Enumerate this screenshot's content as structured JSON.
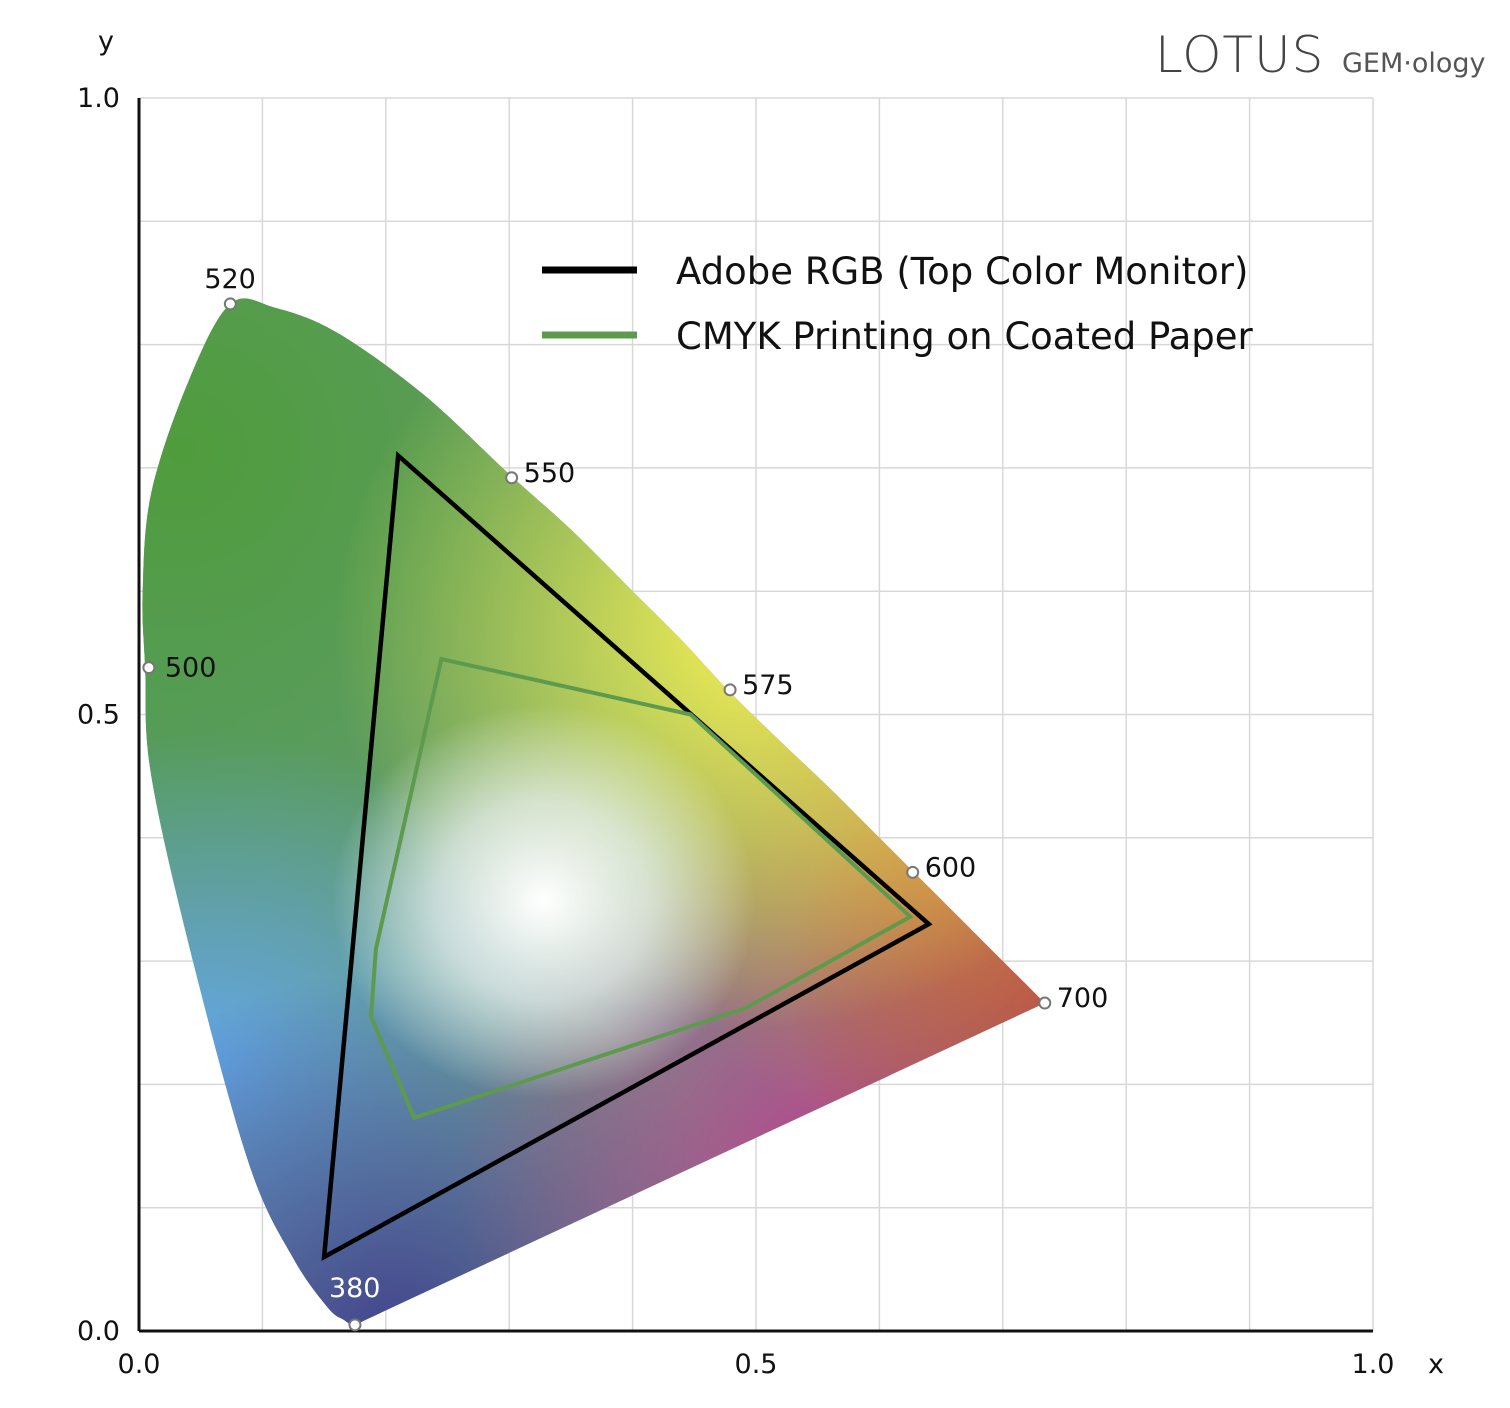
{
  "brand": {
    "main": "LOTUS",
    "sub": "GEM·ology"
  },
  "chart_data": {
    "type": "scatter",
    "title": "",
    "xlabel": "x",
    "ylabel": "y",
    "xlim": [
      0,
      1
    ],
    "ylim": [
      0,
      1
    ],
    "grid": true,
    "legend_position": "top-right",
    "x_tick_labels": [
      "0.0",
      "0.5",
      "1.0"
    ],
    "y_tick_labels": [
      "0.0",
      "0.5",
      "1.0"
    ],
    "spectral_locus": [
      [
        0.175,
        0.005
      ],
      [
        0.172,
        0.005
      ],
      [
        0.166,
        0.009
      ],
      [
        0.153,
        0.019
      ],
      [
        0.125,
        0.059
      ],
      [
        0.09,
        0.133
      ],
      [
        0.045,
        0.295
      ],
      [
        0.01,
        0.45
      ],
      [
        0.005,
        0.538
      ],
      [
        0.003,
        0.6
      ],
      [
        0.01,
        0.68
      ],
      [
        0.04,
        0.77
      ],
      [
        0.074,
        0.833
      ],
      [
        0.11,
        0.83
      ],
      [
        0.16,
        0.81
      ],
      [
        0.23,
        0.76
      ],
      [
        0.3,
        0.695
      ],
      [
        0.35,
        0.65
      ],
      [
        0.4,
        0.6
      ],
      [
        0.44,
        0.56
      ],
      [
        0.478,
        0.519
      ],
      [
        0.52,
        0.478
      ],
      [
        0.56,
        0.44
      ],
      [
        0.6,
        0.4
      ],
      [
        0.627,
        0.373
      ],
      [
        0.67,
        0.33
      ],
      [
        0.734,
        0.266
      ]
    ],
    "wavelength_markers": [
      {
        "label": "380",
        "x": 0.175,
        "y": 0.005
      },
      {
        "label": "500",
        "x": 0.008,
        "y": 0.538
      },
      {
        "label": "520",
        "x": 0.074,
        "y": 0.833
      },
      {
        "label": "550",
        "x": 0.302,
        "y": 0.692
      },
      {
        "label": "575",
        "x": 0.479,
        "y": 0.52
      },
      {
        "label": "600",
        "x": 0.627,
        "y": 0.372
      },
      {
        "label": "700",
        "x": 0.734,
        "y": 0.266
      }
    ],
    "series": [
      {
        "name": "Adobe RGB (Top Color Monitor)",
        "color": "#000000",
        "points": [
          [
            0.64,
            0.33
          ],
          [
            0.21,
            0.71
          ],
          [
            0.15,
            0.06
          ]
        ]
      },
      {
        "name": "CMYK Printing on Coated Paper",
        "color": "#5e9a4e",
        "points": [
          [
            0.245,
            0.545
          ],
          [
            0.447,
            0.5
          ],
          [
            0.625,
            0.336
          ],
          [
            0.492,
            0.262
          ],
          [
            0.223,
            0.173
          ],
          [
            0.188,
            0.255
          ],
          [
            0.192,
            0.31
          ]
        ]
      }
    ]
  }
}
